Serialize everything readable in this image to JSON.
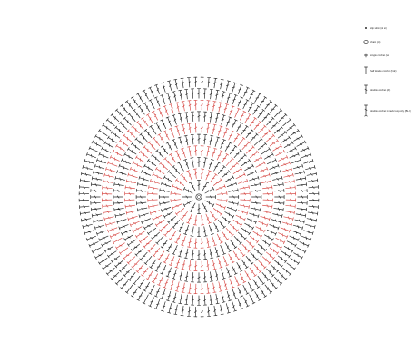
{
  "colors": {
    "dark_stitch": "#2b2b2b",
    "red_stitch": "#d9534f",
    "background": "#ffffff"
  },
  "legend": [
    {
      "symbol": "slip-stitch-icon",
      "label": "slip stitch (sl st)"
    },
    {
      "symbol": "chain-icon",
      "label": "chain (ch)"
    },
    {
      "symbol": "single-crochet-icon",
      "label": "single crochet (sc)"
    },
    {
      "symbol": "half-double-crochet-icon",
      "label": "half double crochet (hdc)"
    },
    {
      "symbol": "double-crochet-icon",
      "label": "double crochet (dc)"
    },
    {
      "symbol": "double-crochet-back-loop-icon",
      "label": "double crochet in back loop only (BLO)"
    }
  ],
  "pattern": {
    "rounds": [
      {
        "stitch": "double-crochet",
        "color": "dark",
        "count": 12
      },
      {
        "stitch": "double-crochet",
        "color": "red",
        "count": 24
      },
      {
        "stitch": "double-crochet",
        "color": "dark",
        "count": 36
      },
      {
        "stitch": "double-crochet",
        "color": "red",
        "count": 48
      },
      {
        "stitch": "double-crochet",
        "color": "dark",
        "count": 60
      },
      {
        "stitch": "double-crochet",
        "color": "red",
        "count": 72
      },
      {
        "stitch": "double-crochet",
        "color": "dark",
        "count": 84
      },
      {
        "stitch": "double-crochet",
        "color": "red",
        "count": 96
      },
      {
        "stitch": "double-crochet",
        "color": "dark",
        "count": 108
      },
      {
        "stitch": "double-crochet",
        "color": "dark",
        "count": 112
      }
    ]
  }
}
